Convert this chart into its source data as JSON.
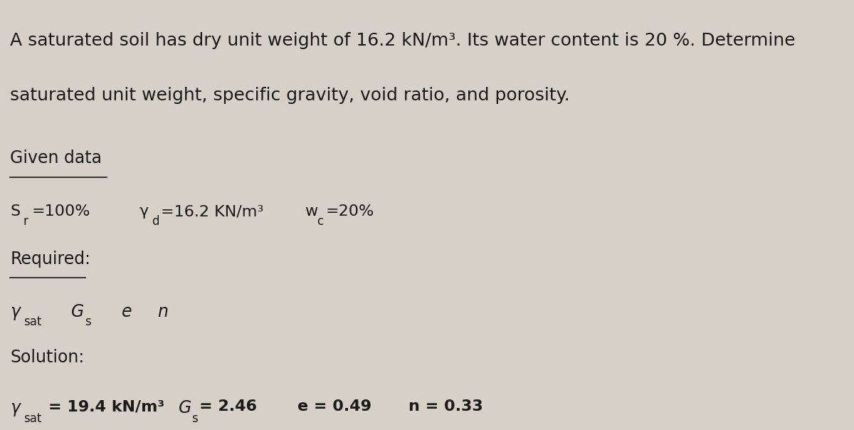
{
  "background_color": "#d6d0c8",
  "text_color": "#1a1a1a",
  "fig_width": 12.0,
  "fig_height": 6.04,
  "problem_line1": "A saturated soil has dry unit weight of 16.2 kN/m³. Its water content is 20 %. Determine",
  "problem_line2": "saturated unit weight, specific gravity, void ratio, and porosity.",
  "given_label": "Given data",
  "required_label": "Required:",
  "solution_label": "Solution:",
  "font_main": 18,
  "font_section": 17,
  "font_body": 16,
  "font_sub": 12
}
